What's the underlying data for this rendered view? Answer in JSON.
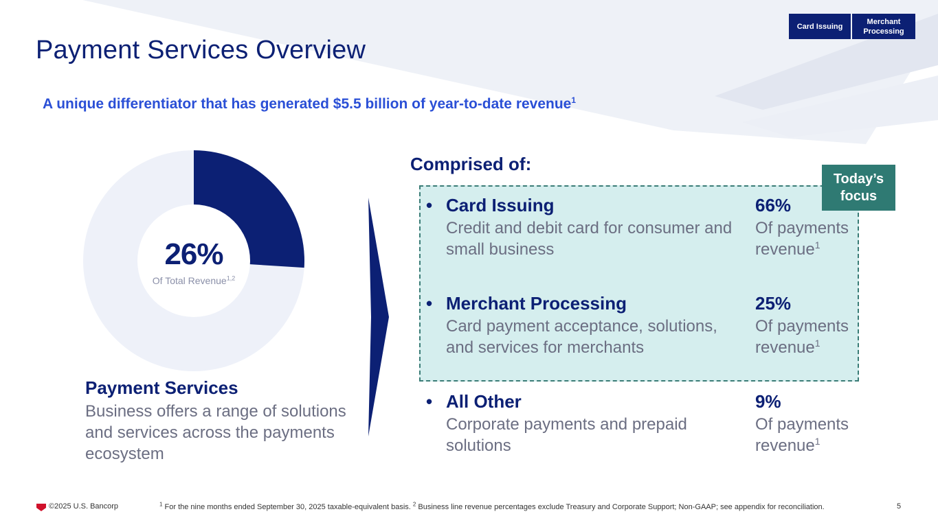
{
  "title": "Payment Services Overview",
  "subtitle": {
    "text": "A unique differentiator that has generated $5.5 billion of year-to-date revenue",
    "footnote_ref": "1"
  },
  "nav_tabs": [
    {
      "label": "Card Issuing"
    },
    {
      "label": "Merchant Processing"
    }
  ],
  "donut": {
    "value_text": "26%",
    "fraction": 0.26,
    "label": "Of Total Revenue",
    "footnote_ref": "1,2",
    "colors": {
      "filled": "#0c2074",
      "remainder": "#eef1f9"
    }
  },
  "payment_services": {
    "title": "Payment Services",
    "description": "Business offers a range of solutions and services across the payments ecosystem"
  },
  "comprised_heading": "Comprised of:",
  "focus_badge": "Today’s focus",
  "segments": [
    {
      "bullet": "•",
      "name": "Card Issuing",
      "description": "Credit and debit card for consumer and small business",
      "pct": "66%",
      "of_label": "Of payments revenue",
      "footnote_ref": "1"
    },
    {
      "bullet": "•",
      "name": "Merchant Processing",
      "description": "Card payment acceptance, solutions, and services for merchants",
      "pct": "25%",
      "of_label": "Of payments revenue",
      "footnote_ref": "1"
    },
    {
      "bullet": "•",
      "name": "All Other",
      "description": "Corporate payments and prepaid solutions",
      "pct": "9%",
      "of_label": "Of payments revenue",
      "footnote_ref": "1"
    }
  ],
  "footer": {
    "copyright": "©2025 U.S. Bancorp",
    "footnote_1_ref": "1",
    "footnote_1": " For the nine months ended September 30, 2025 taxable-equivalent basis. ",
    "footnote_2_ref": "2",
    "footnote_2": " Business line revenue percentages exclude Treasury and Corporate Support; Non-GAAP; see appendix for reconciliation.",
    "page_number": "5"
  },
  "colors": {
    "navy": "#0c2074",
    "accent_blue": "#2a4fd6",
    "teal": "#2f7a73",
    "focus_fill": "#d5eeee",
    "gray_text": "#6b6e82",
    "logo_red": "#d0112b"
  }
}
